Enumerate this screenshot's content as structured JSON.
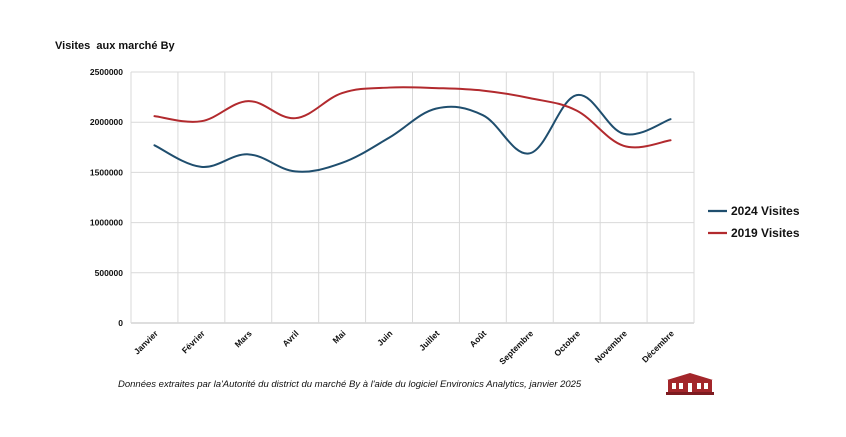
{
  "chart_data": {
    "type": "line",
    "title": "Visites  aux marché By",
    "categories": [
      "Janvier",
      "Février",
      "Mars",
      "Avril",
      "Mai",
      "Juin",
      "Juillet",
      "Août",
      "Septembre",
      "Octobre",
      "Novembre",
      "Décembre"
    ],
    "series": [
      {
        "name": "2024 Visites",
        "color": "#1f4e6e",
        "values": [
          1770000,
          1555000,
          1680000,
          1510000,
          1595000,
          1845000,
          2135000,
          2070000,
          1690000,
          2270000,
          1885000,
          2030000
        ]
      },
      {
        "name": "2019 Visites",
        "color": "#b22a2e",
        "values": [
          2060000,
          2010000,
          2210000,
          2040000,
          2290000,
          2345000,
          2340000,
          2315000,
          2240000,
          2115000,
          1765000,
          1820000
        ]
      }
    ],
    "yticks": [
      "0",
      "500000",
      "1000000",
      "1500000",
      "2000000",
      "2500000"
    ],
    "ylim": [
      0,
      2500000
    ],
    "grid": true,
    "legend_position": "right"
  },
  "footer": {
    "source": "Données extraites par la'Autorité du district du marché By à l'aide du logiciel Environics Analytics, janvier 2025"
  },
  "logo": {
    "icon": "market-building-icon",
    "color": "#a3262b"
  }
}
